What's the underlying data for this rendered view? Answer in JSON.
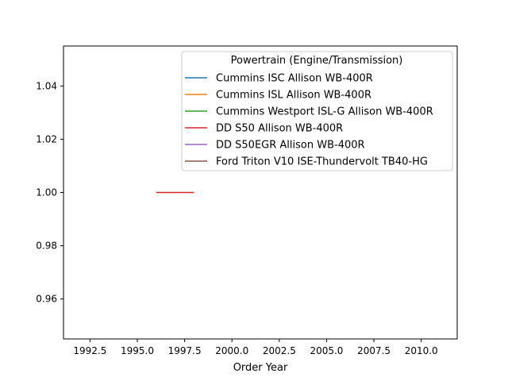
{
  "chart_data": {
    "type": "line",
    "xlabel": "Order Year",
    "ylabel": "",
    "xlim": [
      1991.1,
      2011.9
    ],
    "ylim": [
      0.945,
      1.055
    ],
    "x_ticks": [
      "1992.5",
      "1995.0",
      "1997.5",
      "2000.0",
      "2002.5",
      "2005.0",
      "2007.5",
      "2010.0"
    ],
    "x_tick_values": [
      1992.5,
      1995.0,
      1997.5,
      2000.0,
      2002.5,
      2005.0,
      2007.5,
      2010.0
    ],
    "y_ticks": [
      "0.96",
      "0.98",
      "1.00",
      "1.02",
      "1.04"
    ],
    "y_tick_values": [
      0.96,
      0.98,
      1.0,
      1.02,
      1.04
    ],
    "legend": {
      "title": "Powertrain (Engine/Transmission)",
      "placement": "upper-right"
    },
    "series": [
      {
        "name": "Cummins ISC Allison WB-400R",
        "color": "#1f77b4",
        "x": [],
        "y": []
      },
      {
        "name": "Cummins ISL Allison WB-400R",
        "color": "#ff7f0e",
        "x": [],
        "y": []
      },
      {
        "name": "Cummins Westport ISL-G Allison WB-400R",
        "color": "#2ca02c",
        "x": [],
        "y": []
      },
      {
        "name": "DD S50 Allison WB-400R",
        "color": "#d62728",
        "x": [
          1996,
          1998
        ],
        "y": [
          1.0,
          1.0
        ]
      },
      {
        "name": "DD S50EGR Allison WB-400R",
        "color": "#9467bd",
        "x": [],
        "y": []
      },
      {
        "name": "Ford Triton V10 ISE-Thundervolt TB40-HG",
        "color": "#8c564b",
        "x": [],
        "y": []
      }
    ]
  }
}
